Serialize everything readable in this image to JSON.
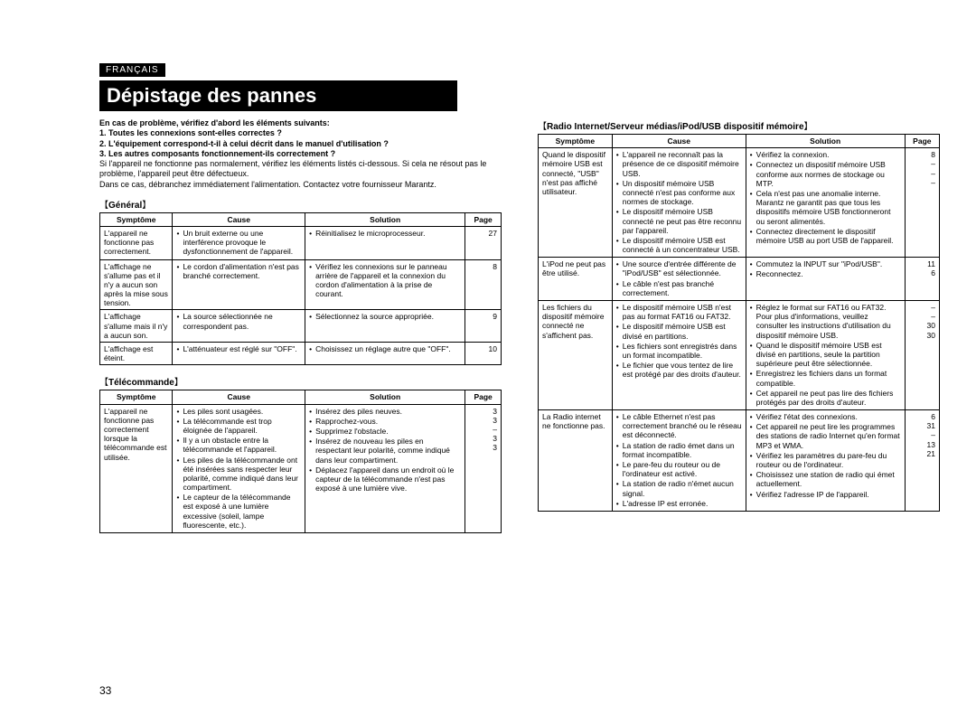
{
  "lang": "FRANÇAIS",
  "title": "Dépistage des pannes",
  "page_number": "33",
  "intro": {
    "lead": "En cas de problème, vérifiez d'abord les éléments suivants:",
    "items": [
      "Toutes les connexions sont-elles correctes ?",
      "L'équipement correspond-t-il à celui décrit dans le manuel d'utilisation ?",
      "Les autres composants fonctionnement-ils correctement ?"
    ],
    "para1": "Si l'appareil ne fonctionne pas normalement, vérifiez les éléments listés ci-dessous. Si cela ne résout pas le problème, l'appareil peut être défectueux.",
    "para2": "Dans ce cas, débranchez immédiatement l'alimentation. Contactez votre fournisseur Marantz."
  },
  "headers": {
    "symptom": "Symptôme",
    "cause": "Cause",
    "solution": "Solution",
    "page": "Page"
  },
  "sections": {
    "general": "Général",
    "remote": "Télécommande",
    "radio": "Radio Internet/Serveur médias/iPod/USB dispositif mémoire"
  },
  "tables": {
    "general": [
      {
        "symptom": "L'appareil ne fonctionne pas correctement.",
        "cause": [
          "Un bruit externe ou une interférence provoque le dysfonctionnement de l'appareil."
        ],
        "solution": [
          "Réinitialisez le microprocesseur."
        ],
        "page": [
          "27"
        ]
      },
      {
        "symptom": "L'affichage ne s'allume pas et il n'y a aucun son après la mise sous tension.",
        "cause": [
          "Le cordon d'alimentation n'est pas branché correctement."
        ],
        "solution": [
          "Vérifiez les connexions sur le panneau arrière de l'appareil et la connexion du cordon d'alimentation à la prise de courant."
        ],
        "page": [
          "8"
        ]
      },
      {
        "symptom": "L'affichage s'allume mais il n'y a aucun son.",
        "cause": [
          "La source sélectionnée ne correspondent pas."
        ],
        "solution": [
          "Sélectionnez la source appropriée."
        ],
        "page": [
          "9"
        ]
      },
      {
        "symptom": "L'affichage est éteint.",
        "cause": [
          "L'atténuateur est réglé sur \"OFF\"."
        ],
        "solution": [
          "Choisissez un réglage autre que \"OFF\"."
        ],
        "page": [
          "10"
        ]
      }
    ],
    "remote": [
      {
        "symptom": "L'appareil ne fonctionne pas correctement lorsque la télécommande est utilisée.",
        "cause": [
          "Les piles sont usagées.",
          "La télécommande est trop éloignée de l'appareil.",
          "Il y a un obstacle entre la télécommande et l'appareil.",
          "Les piles de la télécommande ont été insérées sans respecter leur polarité, comme indiqué dans leur compartiment.",
          "Le capteur de la télécommande est exposé à une lumière excessive (soleil, lampe fluorescente, etc.)."
        ],
        "solution": [
          "Insérez des piles neuves.",
          "Rapprochez-vous.",
          "Supprimez l'obstacle.",
          "Insérez de nouveau les piles en respectant leur polarité, comme indiqué dans leur compartiment.",
          "Déplacez l'appareil dans un endroit où le capteur de la télécommande n'est pas exposé à une lumière vive."
        ],
        "page": [
          "3",
          "3",
          "–",
          "3",
          "3"
        ]
      }
    ],
    "radio": [
      {
        "symptom": "Quand le dispositif mémoire USB est connecté, \"USB\" n'est pas affiché utilisateur.",
        "cause": [
          "L'appareil ne reconnaît pas la présence de ce dispositif mémoire USB.",
          "Un dispositif mémoire USB connecté n'est pas conforme aux normes de stockage.",
          "Le dispositif mémoire USB connecté ne peut pas être reconnu par l'appareil.",
          "Le dispositif mémoire USB est connecté à un concentrateur USB."
        ],
        "solution": [
          "Vérifiez la connexion.",
          "Connectez un dispositif mémoire USB conforme aux normes de stockage ou MTP.",
          "Cela n'est pas une anomalie interne. Marantz ne garantit pas que tous les dispositifs mémoire USB fonctionneront ou seront alimentés.",
          "Connectez directement le dispositif mémoire USB au port USB de l'appareil."
        ],
        "page": [
          "8",
          "–",
          "–",
          "–"
        ]
      },
      {
        "symptom": "L'iPod ne peut pas être utilisé.",
        "cause": [
          "Une source d'entrée différente de \"iPod/USB\" est sélectionnée.",
          "Le câble n'est pas branché correctement."
        ],
        "solution": [
          "Commutez la INPUT sur \"iPod/USB\".",
          "Reconnectez."
        ],
        "page": [
          "11",
          "6"
        ]
      },
      {
        "symptom": "Les fichiers du dispositif mémoire connecté ne s'affichent pas.",
        "cause": [
          "Le dispositif mémoire USB n'est pas au format FAT16 ou FAT32.",
          "Le dispositif mémoire USB est divisé en partitions.",
          "Les fichiers sont enregistrés dans un format incompatible.",
          "Le fichier que vous tentez de lire est protégé par des droits d'auteur."
        ],
        "solution": [
          "Réglez le format sur FAT16 ou FAT32. Pour plus d'informations, veuillez consulter les instructions d'utilisation du dispositif mémoire USB.",
          "Quand le dispositif mémoire USB est divisé en partitions, seule la partition supérieure peut être sélectionnée.",
          "Enregistrez les fichiers dans un format compatible.",
          "Cet appareil ne peut pas lire des fichiers protégés par des droits d'auteur."
        ],
        "page": [
          "–",
          "–",
          "30",
          "30"
        ]
      },
      {
        "symptom": "La Radio internet ne fonctionne pas.",
        "cause": [
          "Le câble Ethernet n'est pas correctement branché ou le réseau est déconnecté.",
          "La station de radio émet dans un format incompatible.",
          "Le pare-feu du routeur ou de l'ordinateur est activé.",
          "La station de radio n'émet aucun signal.",
          "L'adresse IP est erronée."
        ],
        "solution": [
          "Vérifiez l'état des connexions.",
          "Cet appareil ne peut lire les programmes des stations de radio Internet qu'en format MP3 et WMA.",
          "Vérifiez les paramètres du pare-feu du routeur ou de l'ordinateur.",
          "Choisissez une station de radio qui émet actuellement.",
          "Vérifiez l'adresse IP de l'appareil."
        ],
        "page": [
          "6",
          "31",
          "–",
          "13",
          "21"
        ]
      }
    ]
  }
}
